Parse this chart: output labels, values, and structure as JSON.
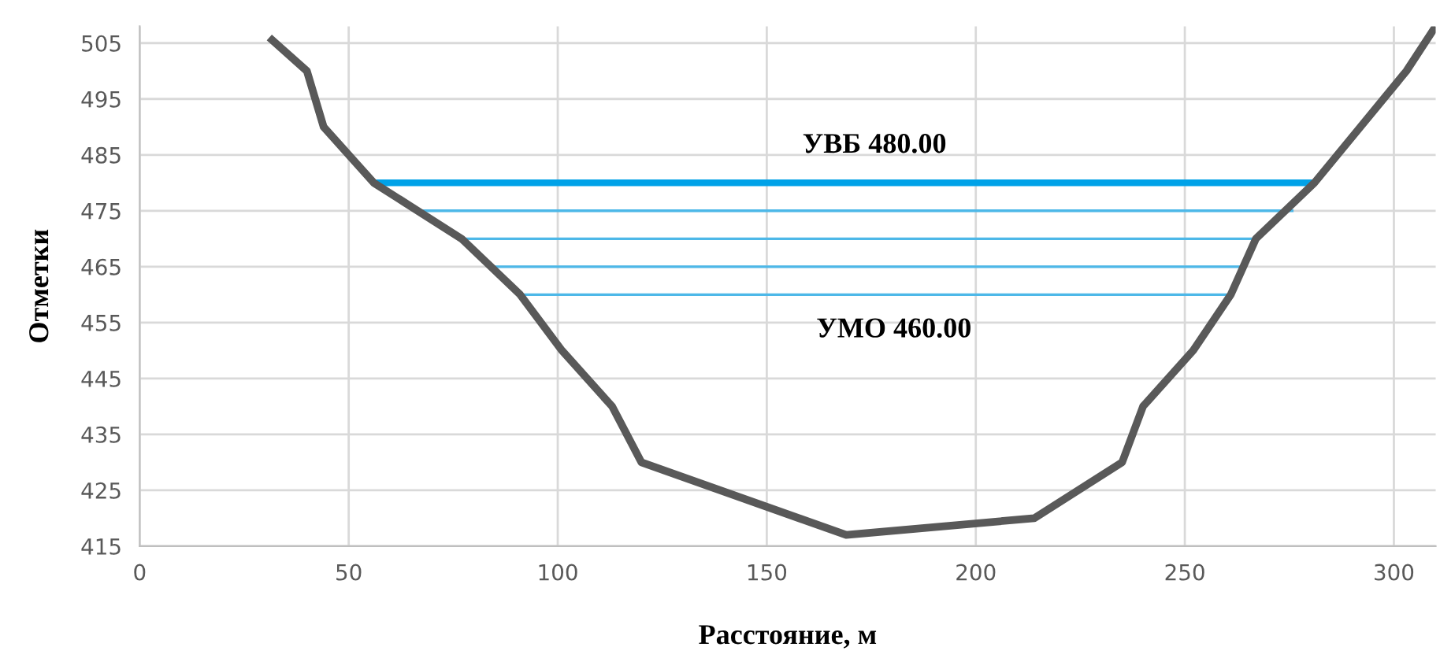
{
  "chart_data": {
    "type": "line",
    "xlabel": "Расстояние, м",
    "ylabel": "Отметки",
    "xlim": [
      0,
      310
    ],
    "xticks": [
      0,
      50,
      100,
      150,
      200,
      250,
      300
    ],
    "ylim": [
      415,
      508
    ],
    "yticks": [
      415,
      425,
      435,
      445,
      455,
      465,
      475,
      485,
      495,
      505
    ],
    "grid": true,
    "legend": false,
    "marker": "none",
    "line_style": "solid",
    "series": [
      {
        "color": "#595959",
        "x": [
          31,
          40,
          44,
          56,
          77,
          91,
          101,
          113,
          120,
          169,
          214,
          235,
          240,
          252,
          261,
          267,
          281,
          292,
          303,
          310
        ],
        "values": [
          506,
          500,
          490,
          480,
          470,
          460,
          450,
          440,
          430,
          417,
          420,
          430,
          440,
          450,
          460,
          470,
          480,
          490,
          500,
          508
        ]
      },
      {
        "color": "#00a2e8",
        "x": [
          56,
          281
        ],
        "values": [
          480,
          480
        ]
      },
      {
        "color": "#4db8e8",
        "x": [
          67,
          276
        ],
        "values": [
          475,
          475
        ]
      },
      {
        "color": "#4db8e8",
        "x": [
          77,
          267
        ],
        "values": [
          470,
          470
        ]
      },
      {
        "color": "#4db8e8",
        "x": [
          84,
          264
        ],
        "values": [
          465,
          465
        ]
      },
      {
        "color": "#4db8e8",
        "x": [
          91,
          261
        ],
        "values": [
          460,
          460
        ]
      }
    ],
    "annotations": [
      "УВБ 480.00",
      "УМО 460.00"
    ]
  }
}
